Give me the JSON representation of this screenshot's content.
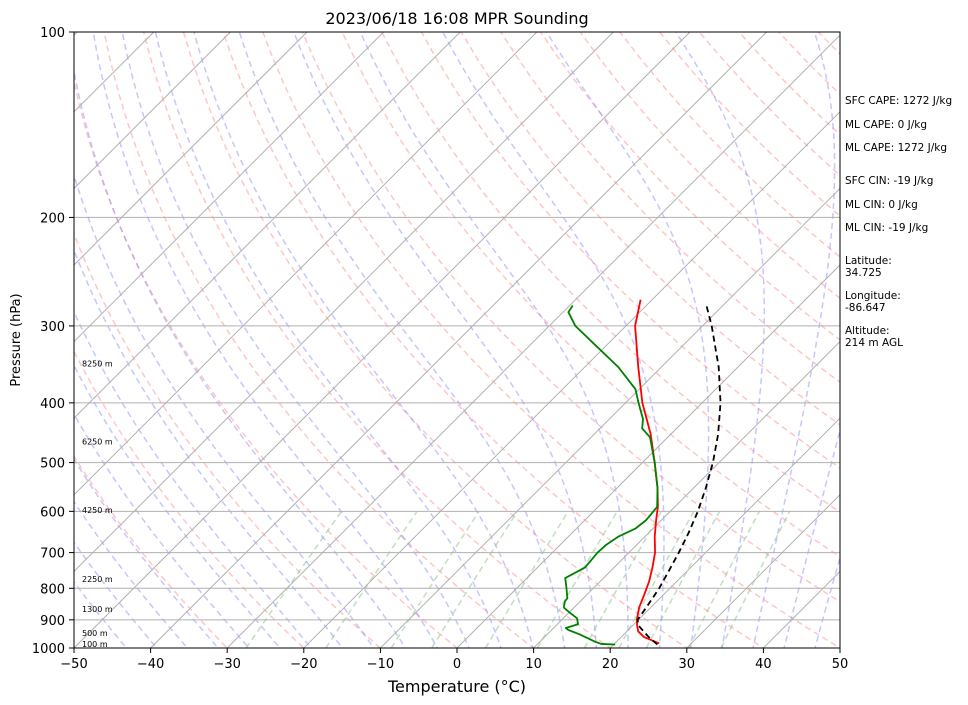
{
  "chart_data": {
    "type": "line",
    "title": "2023/06/18 16:08 MPR Sounding",
    "xlabel": "Temperature (°C)",
    "ylabel": "Pressure (hPa)",
    "xlim": [
      -50,
      50
    ],
    "ylim": [
      1000,
      100
    ],
    "y_scale": "log",
    "x_ticks": [
      -50,
      -40,
      -30,
      -20,
      -10,
      0,
      10,
      20,
      30,
      40,
      50
    ],
    "y_ticks": [
      1000,
      900,
      800,
      700,
      600,
      500,
      400,
      300,
      200,
      100
    ],
    "skew": 45,
    "height_labels": [
      {
        "p": 985,
        "text": "100 m"
      },
      {
        "p": 945,
        "text": "500 m"
      },
      {
        "p": 865,
        "text": "1300 m"
      },
      {
        "p": 772,
        "text": "2250 m"
      },
      {
        "p": 597,
        "text": "4250 m"
      },
      {
        "p": 462,
        "text": "6250 m"
      },
      {
        "p": 345,
        "text": "8250 m"
      }
    ],
    "series": [
      {
        "role": "temperature",
        "color": "#ff0000",
        "points": [
          {
            "p": 983,
            "t": 25.8
          },
          {
            "p": 960,
            "t": 23.0
          },
          {
            "p": 940,
            "t": 21.5
          },
          {
            "p": 920,
            "t": 20.6
          },
          {
            "p": 900,
            "t": 19.8
          },
          {
            "p": 860,
            "t": 18.5
          },
          {
            "p": 820,
            "t": 17.5
          },
          {
            "p": 780,
            "t": 16.4
          },
          {
            "p": 740,
            "t": 15.0
          },
          {
            "p": 700,
            "t": 13.4
          },
          {
            "p": 660,
            "t": 11.3
          },
          {
            "p": 620,
            "t": 9.3
          },
          {
            "p": 590,
            "t": 7.8
          },
          {
            "p": 550,
            "t": 5.3
          },
          {
            "p": 500,
            "t": 1.6
          },
          {
            "p": 450,
            "t": -2.6
          },
          {
            "p": 400,
            "t": -7.8
          },
          {
            "p": 350,
            "t": -13.0
          },
          {
            "p": 300,
            "t": -18.8
          },
          {
            "p": 272,
            "t": -21.5
          }
        ]
      },
      {
        "role": "dewpoint",
        "color": "#008000",
        "points": [
          {
            "p": 987,
            "t": 20.2
          },
          {
            "p": 985,
            "t": 18.3
          },
          {
            "p": 975,
            "t": 17.0
          },
          {
            "p": 950,
            "t": 14.2
          },
          {
            "p": 935,
            "t": 12.2
          },
          {
            "p": 928,
            "t": 11.6
          },
          {
            "p": 915,
            "t": 12.7
          },
          {
            "p": 895,
            "t": 11.8
          },
          {
            "p": 875,
            "t": 10.0
          },
          {
            "p": 860,
            "t": 8.7
          },
          {
            "p": 855,
            "t": 8.5
          },
          {
            "p": 840,
            "t": 8.0
          },
          {
            "p": 830,
            "t": 7.9
          },
          {
            "p": 800,
            "t": 6.5
          },
          {
            "p": 770,
            "t": 5.0
          },
          {
            "p": 760,
            "t": 5.4
          },
          {
            "p": 740,
            "t": 6.2
          },
          {
            "p": 700,
            "t": 5.9
          },
          {
            "p": 680,
            "t": 6.0
          },
          {
            "p": 660,
            "t": 6.5
          },
          {
            "p": 640,
            "t": 7.7
          },
          {
            "p": 620,
            "t": 8.0
          },
          {
            "p": 590,
            "t": 7.7
          },
          {
            "p": 550,
            "t": 5.3
          },
          {
            "p": 500,
            "t": 1.6
          },
          {
            "p": 455,
            "t": -2.3
          },
          {
            "p": 440,
            "t": -4.5
          },
          {
            "p": 425,
            "t": -5.6
          },
          {
            "p": 400,
            "t": -8.3
          },
          {
            "p": 380,
            "t": -10.5
          },
          {
            "p": 350,
            "t": -15.6
          },
          {
            "p": 320,
            "t": -22.0
          },
          {
            "p": 300,
            "t": -26.6
          },
          {
            "p": 285,
            "t": -29.3
          },
          {
            "p": 278,
            "t": -29.6
          }
        ]
      },
      {
        "role": "parcel",
        "color": "#000000",
        "dashed": true,
        "points": [
          {
            "p": 987,
            "t": 25.7
          },
          {
            "p": 960,
            "t": 23.6
          },
          {
            "p": 920,
            "t": 20.8
          },
          {
            "p": 900,
            "t": 19.9
          },
          {
            "p": 850,
            "t": 19.3
          },
          {
            "p": 800,
            "t": 18.6
          },
          {
            "p": 750,
            "t": 17.6
          },
          {
            "p": 700,
            "t": 16.5
          },
          {
            "p": 650,
            "t": 15.2
          },
          {
            "p": 600,
            "t": 13.6
          },
          {
            "p": 550,
            "t": 11.6
          },
          {
            "p": 500,
            "t": 9.2
          },
          {
            "p": 450,
            "t": 6.2
          },
          {
            "p": 400,
            "t": 2.4
          },
          {
            "p": 350,
            "t": -2.5
          },
          {
            "p": 300,
            "t": -8.8
          },
          {
            "p": 277,
            "t": -12.3
          }
        ]
      }
    ]
  },
  "annotations": {
    "sfc_cape": "SFC CAPE: 1272 J/kg",
    "ml_cape_1": "ML CAPE: 0 J/kg",
    "ml_cape_2": "ML CAPE: 1272 J/kg",
    "sfc_cin": "SFC CIN: -19 J/kg",
    "ml_cin_1": "ML CIN: 0 J/kg",
    "ml_cin_2": "ML CIN: -19 J/kg",
    "latitude_label": "Latitude:",
    "latitude_value": "34.725",
    "longitude_label": "Longitude:",
    "longitude_value": "-86.647",
    "altitude_label": "Altitude:",
    "altitude_value": "214 m AGL"
  },
  "colors": {
    "isotherm": "#b0b0b0",
    "isobar": "#b0b0b0",
    "dry_adiabat": "#ff8080",
    "moist_adiabat": "#8080ff",
    "mixing_ratio": "#80c080"
  }
}
